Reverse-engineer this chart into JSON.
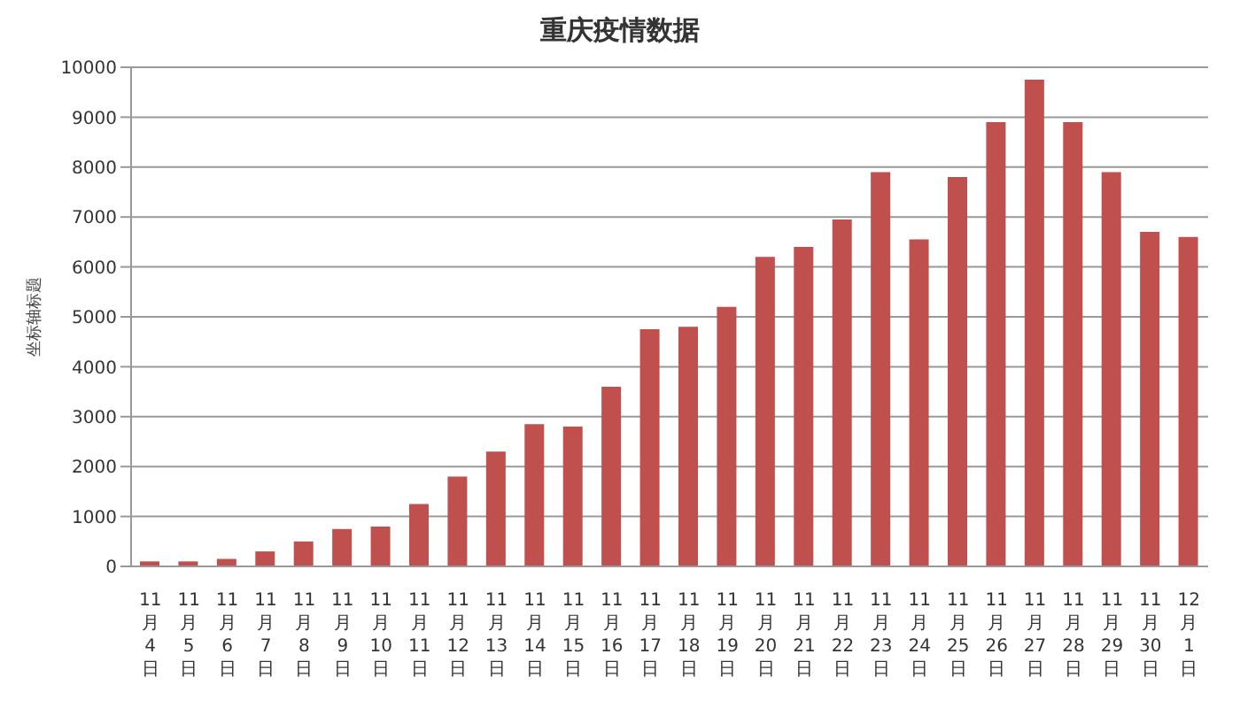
{
  "chart_data": {
    "type": "bar",
    "title": "重庆疫情数据",
    "ylabel": "坐标轴标题",
    "categories": [
      "11月4日",
      "11月5日",
      "11月6日",
      "11月7日",
      "11月8日",
      "11月9日",
      "11月10日",
      "11月11日",
      "11月12日",
      "11月13日",
      "11月14日",
      "11月15日",
      "11月16日",
      "11月17日",
      "11月18日",
      "11月19日",
      "11月20日",
      "11月21日",
      "11月22日",
      "11月23日",
      "11月24日",
      "11月25日",
      "11月26日",
      "11月27日",
      "11月28日",
      "11月29日",
      "11月30日",
      "12月1日"
    ],
    "values": [
      100,
      100,
      150,
      300,
      500,
      750,
      800,
      1250,
      1800,
      2300,
      2850,
      2800,
      3600,
      4750,
      4800,
      5200,
      6200,
      6400,
      6950,
      7900,
      6550,
      7800,
      8900,
      9750,
      8900,
      7900,
      6700,
      6600
    ],
    "color": "#c0504d",
    "ylim": [
      0,
      10000
    ],
    "yticks": [
      0,
      1000,
      2000,
      3000,
      4000,
      5000,
      6000,
      7000,
      8000,
      9000,
      10000
    ],
    "grid": "y"
  }
}
